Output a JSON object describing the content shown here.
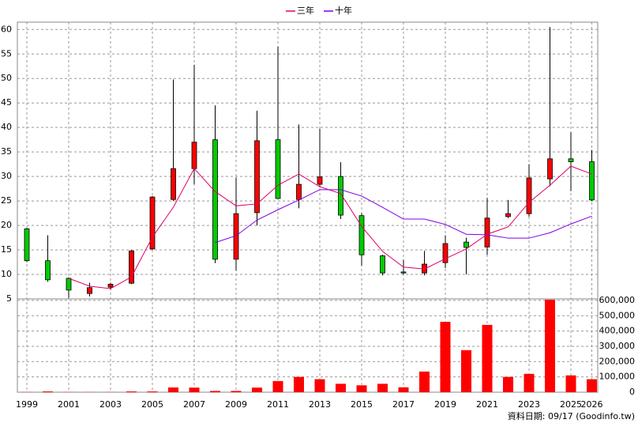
{
  "chart_data": [
    {
      "type": "candlestick",
      "legend": "top",
      "grid": true,
      "up_color": "#ff0000",
      "down_color": "#00cc00",
      "ylim": [
        5,
        61.5
      ],
      "yticks": [
        5,
        10,
        15,
        20,
        25,
        30,
        35,
        40,
        45,
        50,
        55,
        60
      ],
      "open": [
        19.3,
        12.8,
        9.2,
        6.1,
        7.4,
        8.2,
        15.2,
        25.3,
        31.6,
        37.5,
        13.1,
        22.6,
        37.5,
        25.3,
        28.4,
        30,
        22,
        13.8,
        10.5,
        10.3,
        12.4,
        16.6,
        15.6,
        21.8,
        22.4,
        29.5,
        33.6,
        33
      ],
      "high": [
        19.5,
        18,
        9.4,
        8.3,
        8.3,
        15,
        26,
        49.8,
        52.8,
        44.5,
        29.8,
        43.4,
        56.5,
        40.6,
        39.7,
        32.9,
        22.5,
        14,
        13,
        14.8,
        18,
        17.5,
        25.6,
        25.2,
        32.5,
        60.5,
        39,
        35.4
      ],
      "low": [
        12.5,
        8.5,
        5.2,
        5.5,
        6.9,
        8,
        15,
        25,
        28.4,
        12.3,
        10.8,
        20,
        25.5,
        23.5,
        27.8,
        21.3,
        11.8,
        9.8,
        10,
        9.8,
        11.3,
        10,
        14,
        21.5,
        21.8,
        28,
        27,
        25
      ],
      "close": [
        12.8,
        8.9,
        6.8,
        7.3,
        8,
        14.8,
        25.8,
        31.6,
        37,
        13.1,
        22.4,
        37.3,
        25.5,
        28.4,
        29.9,
        22.1,
        14,
        10.3,
        10.3,
        12.1,
        16.3,
        15.5,
        21.5,
        22.4,
        29.7,
        33.6,
        33,
        25.2
      ],
      "series": [
        {
          "name": "三年",
          "color": "#e0006a",
          "values": [
            null,
            null,
            9.2,
            7.6,
            7.1,
            9.5,
            17.6,
            23.7,
            31.6,
            26.9,
            24,
            24.4,
            28.2,
            30.5,
            27.9,
            26.5,
            19.8,
            14.7,
            11.5,
            11.1,
            13.2,
            15.2,
            18.2,
            19.7,
            24.7,
            28.2,
            32.1,
            30.5
          ]
        },
        {
          "name": "十年",
          "color": "#8000e0",
          "values": [
            null,
            null,
            null,
            null,
            null,
            null,
            null,
            null,
            null,
            16.5,
            17.9,
            21.1,
            23.2,
            25.2,
            27.3,
            27.3,
            26,
            23.7,
            21.3,
            21.3,
            20.2,
            18.2,
            18.1,
            17.4,
            17.4,
            18.5,
            20.3,
            21.9
          ]
        }
      ]
    },
    {
      "type": "bar",
      "color": "#ff0000",
      "grid": true,
      "categories": [
        "1999",
        null,
        "2001",
        null,
        "2003",
        null,
        "2005",
        null,
        "2007",
        null,
        "2009",
        null,
        "2011",
        null,
        "2013",
        null,
        "2015",
        null,
        "2017",
        null,
        "2019",
        null,
        "2021",
        null,
        "2023",
        null,
        "2025",
        "2026"
      ],
      "values": [
        1000,
        5000,
        1000,
        1000,
        1000,
        5000,
        5000,
        31000,
        30000,
        8000,
        8000,
        30000,
        73000,
        100000,
        85000,
        55000,
        45000,
        55000,
        32000,
        135000,
        460000,
        275000,
        440000,
        100000,
        120000,
        605000,
        110000,
        85000
      ],
      "ylim": [
        0,
        610000
      ],
      "yticks": [
        0,
        {
          "value": 100000,
          "label": "100,000"
        },
        {
          "value": 200000,
          "label": "200,000"
        },
        {
          "value": 300000,
          "label": "300,000"
        },
        {
          "value": 400000,
          "label": "400,000"
        },
        {
          "value": 500000,
          "label": "500,000"
        },
        {
          "value": 600000,
          "label": "600,000"
        }
      ],
      "annotation": "資料日期: 09/17  (Goodinfo.tw)"
    }
  ]
}
